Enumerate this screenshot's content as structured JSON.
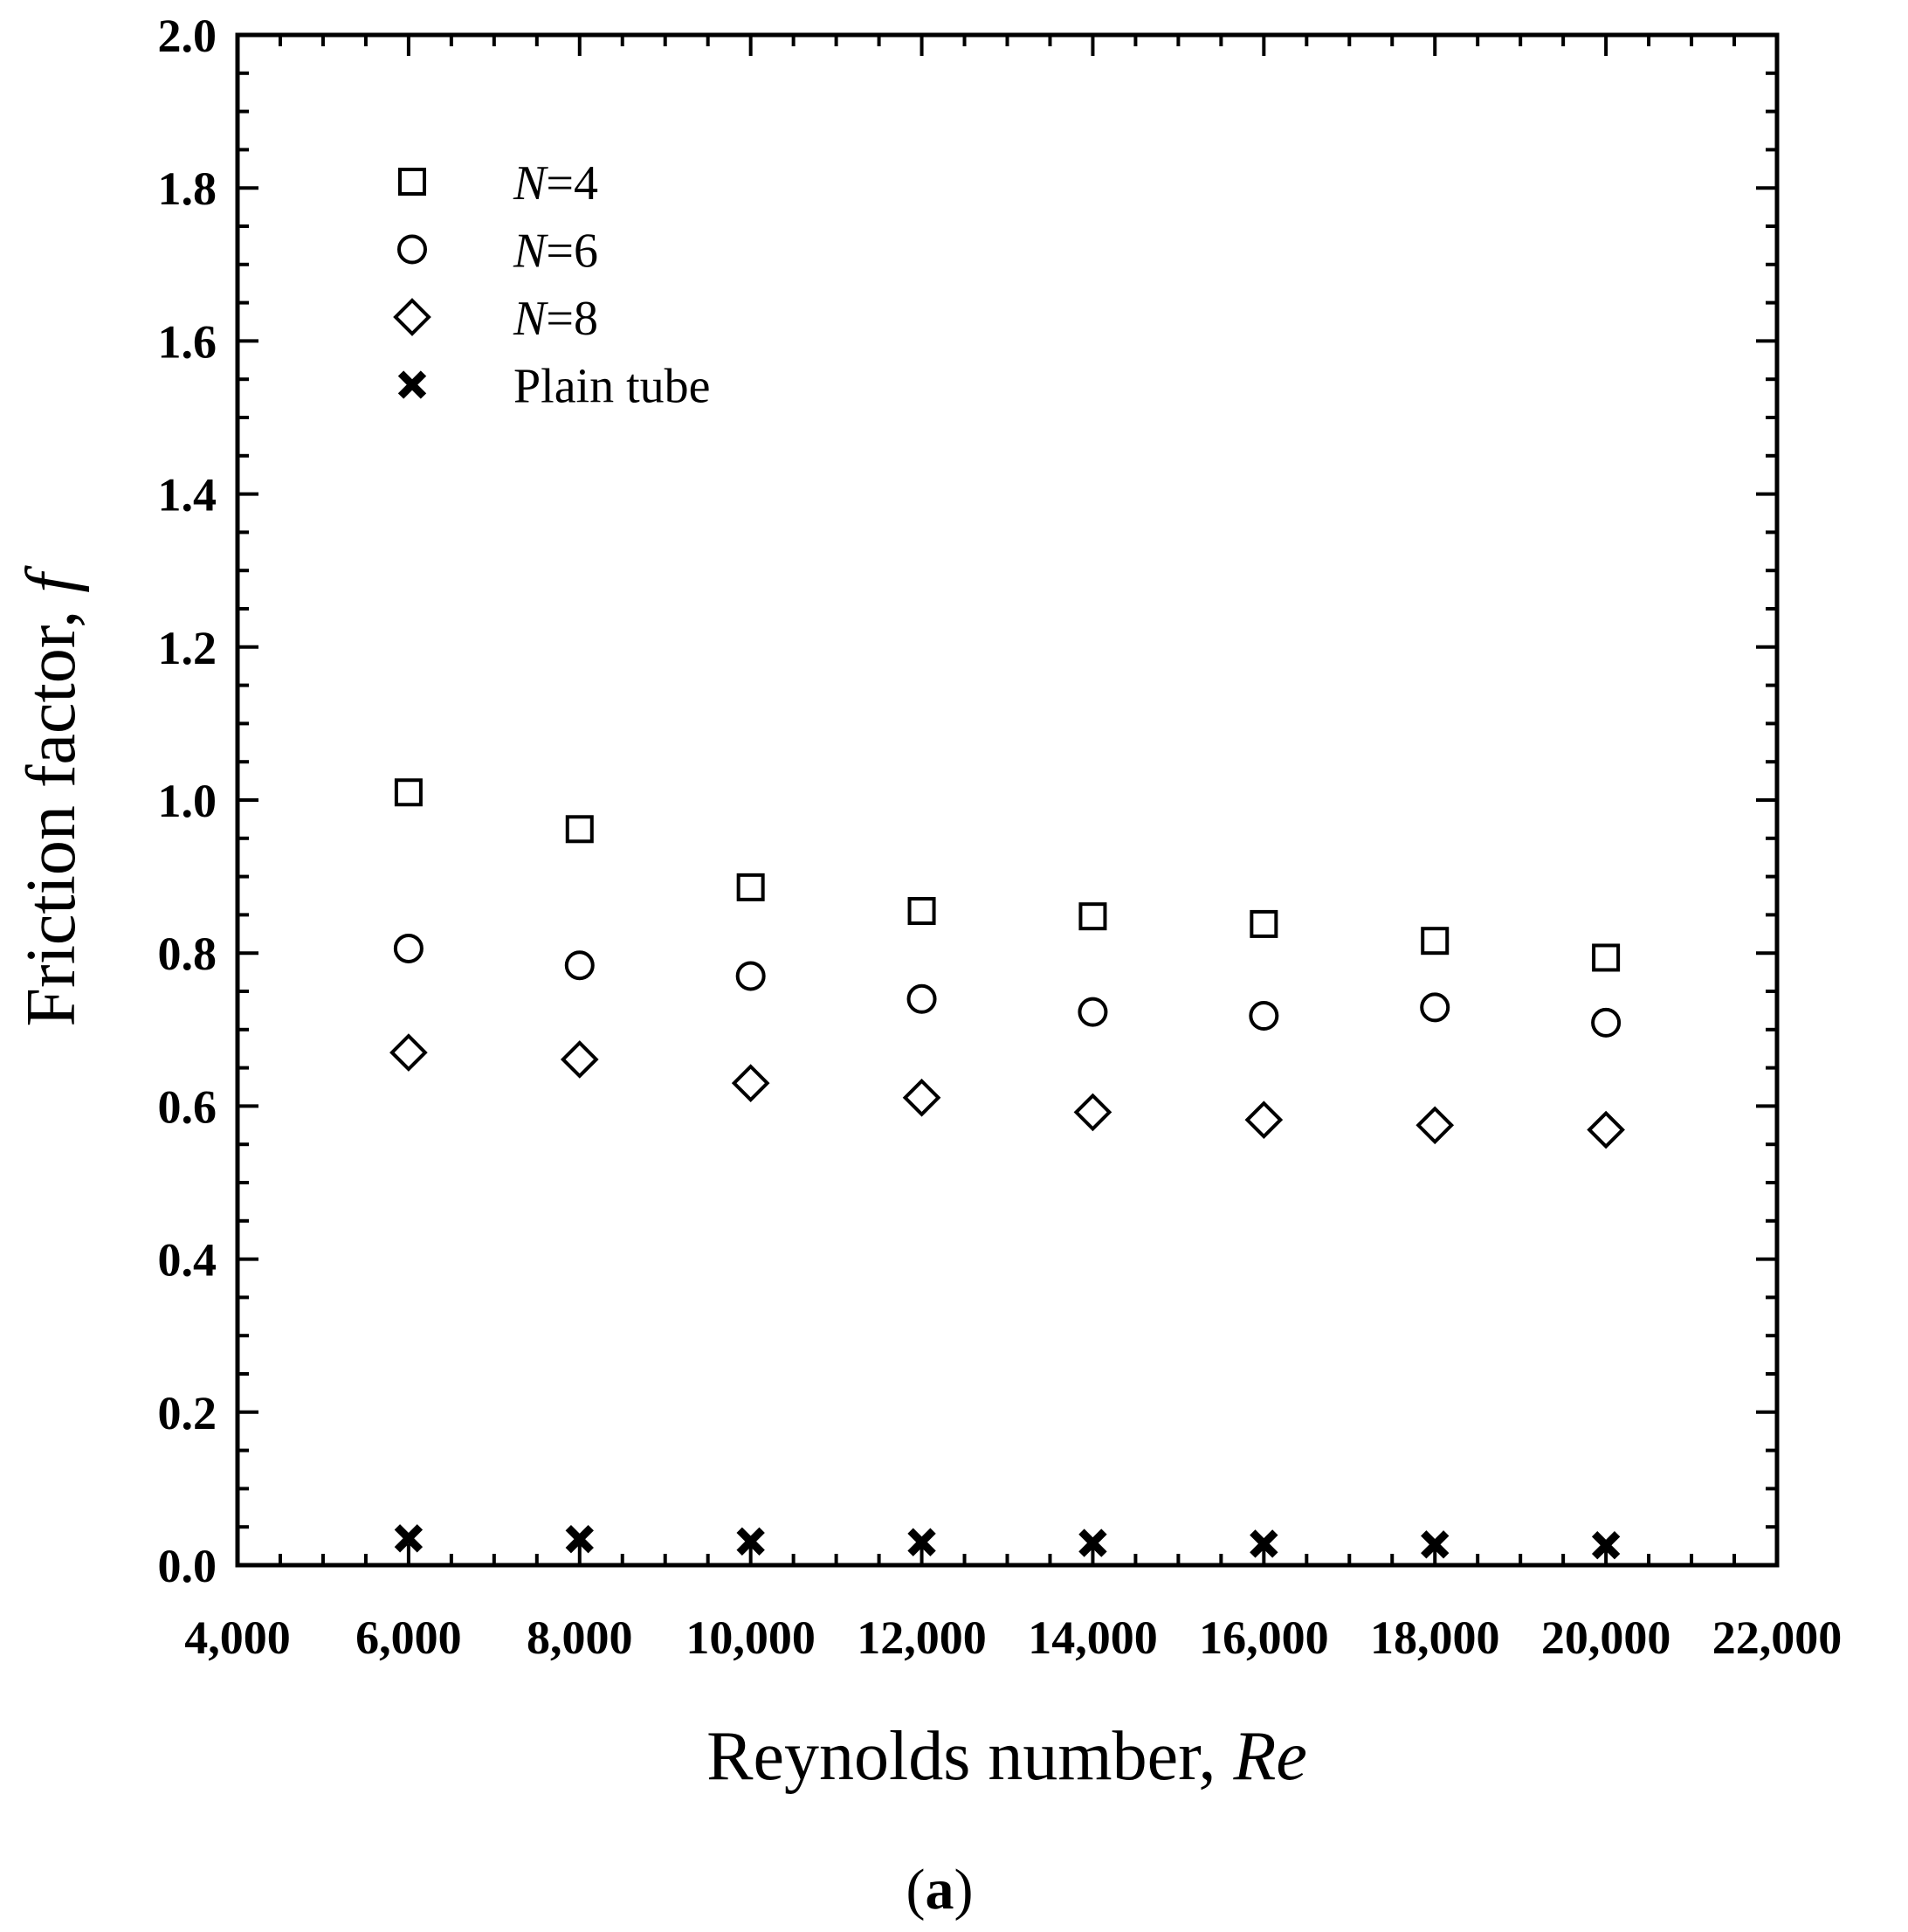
{
  "chart_data": {
    "type": "scatter",
    "xlabel": "Reynolds number, ",
    "xlabel_italic": "Re",
    "ylabel": "Friction factor, ",
    "ylabel_italic": "f",
    "panel_label": "a",
    "panel_label_open": "(",
    "panel_label_close": ")",
    "xlim": [
      4000,
      22000
    ],
    "ylim": [
      0.0,
      2.0
    ],
    "x_ticks": [
      4000,
      6000,
      8000,
      10000,
      12000,
      14000,
      16000,
      18000,
      20000,
      22000
    ],
    "x_tick_labels": [
      "4,000",
      "6,000",
      "8,000",
      "10,000",
      "12,000",
      "14,000",
      "16,000",
      "18,000",
      "20,000",
      "22,000"
    ],
    "y_ticks": [
      0.0,
      0.2,
      0.4,
      0.6,
      0.8,
      1.0,
      1.2,
      1.4,
      1.6,
      1.8,
      2.0
    ],
    "y_tick_labels": [
      "0.0",
      "0.2",
      "0.4",
      "0.6",
      "0.8",
      "1.0",
      "1.2",
      "1.4",
      "1.6",
      "1.8",
      "2.0"
    ],
    "grid": false,
    "legend_position": "top-left",
    "x": [
      6000,
      8000,
      10000,
      12000,
      14000,
      16000,
      18000,
      20000
    ],
    "series": [
      {
        "name_italic": "N",
        "name_rest": "=4",
        "marker": "square",
        "values": [
          1.01,
          0.962,
          0.886,
          0.855,
          0.848,
          0.838,
          0.816,
          0.794
        ]
      },
      {
        "name_italic": "N",
        "name_rest": "=6",
        "marker": "circle",
        "values": [
          0.806,
          0.784,
          0.77,
          0.74,
          0.723,
          0.718,
          0.729,
          0.709
        ]
      },
      {
        "name_italic": "N",
        "name_rest": "=8",
        "marker": "diamond",
        "values": [
          0.67,
          0.661,
          0.63,
          0.611,
          0.592,
          0.582,
          0.575,
          0.569
        ]
      },
      {
        "name_italic": "",
        "name_rest": "Plain tube",
        "marker": "x",
        "values": [
          0.035,
          0.034,
          0.031,
          0.03,
          0.029,
          0.028,
          0.027,
          0.026
        ]
      }
    ]
  }
}
